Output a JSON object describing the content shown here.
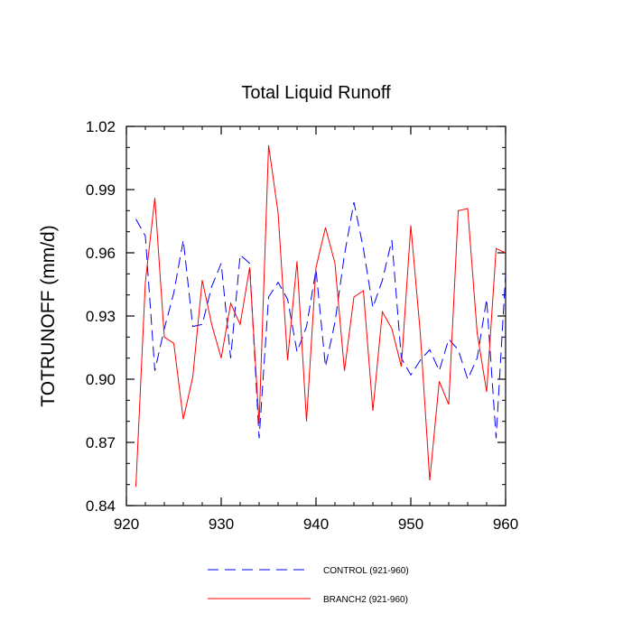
{
  "chart_data": {
    "type": "line",
    "title": "Total Liquid Runoff",
    "xlabel": "",
    "ylabel": "TOTRUNOFF  (mm/d)",
    "xlim": [
      920,
      960
    ],
    "ylim": [
      0.84,
      1.02
    ],
    "xticks": [
      920,
      930,
      940,
      950,
      960
    ],
    "xtick_labels": [
      "920",
      "930",
      "940",
      "950",
      "960"
    ],
    "yticks": [
      0.84,
      0.87,
      0.9,
      0.93,
      0.96,
      0.99,
      1.02
    ],
    "ytick_labels": [
      "0.84",
      "0.87",
      "0.90",
      "0.93",
      "0.96",
      "0.99",
      "1.02"
    ],
    "x": [
      921,
      922,
      923,
      924,
      925,
      926,
      927,
      928,
      929,
      930,
      931,
      932,
      933,
      934,
      935,
      936,
      937,
      938,
      939,
      940,
      941,
      942,
      943,
      944,
      945,
      946,
      947,
      948,
      949,
      950,
      951,
      952,
      953,
      954,
      955,
      956,
      957,
      958,
      959,
      960
    ],
    "series": [
      {
        "name": "CONTROL (921-960)",
        "color": "#0000ff",
        "style": "dashed",
        "values": [
          0.976,
          0.968,
          0.904,
          0.924,
          0.941,
          0.966,
          0.925,
          0.926,
          0.944,
          0.955,
          0.91,
          0.959,
          0.955,
          0.872,
          0.939,
          0.946,
          0.938,
          0.913,
          0.925,
          0.952,
          0.906,
          0.927,
          0.959,
          0.984,
          0.962,
          0.934,
          0.947,
          0.966,
          0.91,
          0.902,
          0.909,
          0.914,
          0.904,
          0.919,
          0.914,
          0.9,
          0.91,
          0.938,
          0.872,
          0.95
        ]
      },
      {
        "name": "BRANCH2 (921-960)",
        "color": "#ff0000",
        "style": "solid",
        "values": [
          0.849,
          0.946,
          0.986,
          0.92,
          0.917,
          0.881,
          0.901,
          0.947,
          0.926,
          0.91,
          0.936,
          0.926,
          0.953,
          0.879,
          1.011,
          0.979,
          0.909,
          0.956,
          0.88,
          0.953,
          0.972,
          0.955,
          0.904,
          0.939,
          0.942,
          0.885,
          0.932,
          0.924,
          0.906,
          0.973,
          0.922,
          0.852,
          0.899,
          0.888,
          0.98,
          0.981,
          0.922,
          0.894,
          0.962,
          0.96
        ]
      }
    ],
    "legend_position": "bottom",
    "grid": false
  }
}
